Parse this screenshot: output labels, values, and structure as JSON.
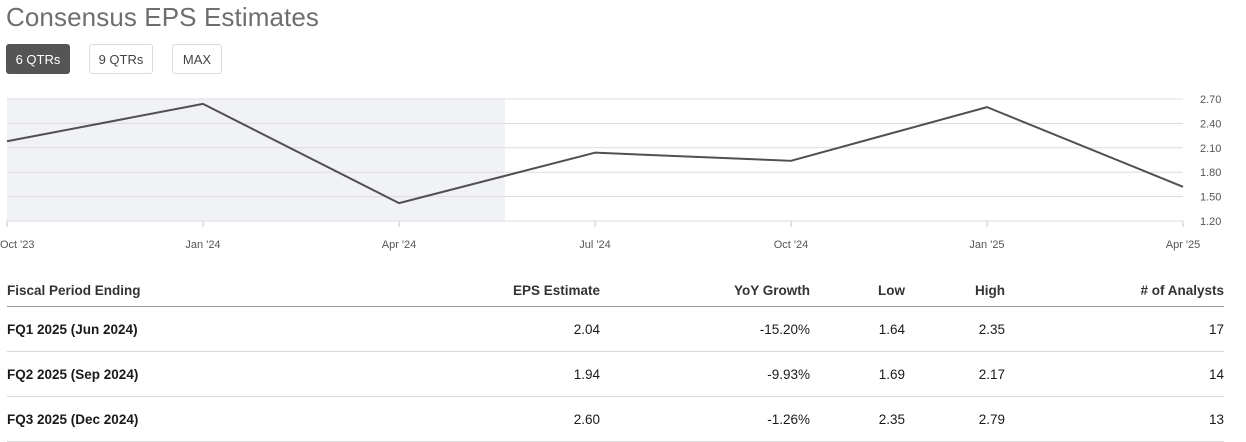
{
  "title": "Consensus EPS Estimates",
  "tabs": [
    {
      "label": "6 QTRs",
      "active": true
    },
    {
      "label": "9 QTRs",
      "active": false
    },
    {
      "label": "MAX",
      "active": false
    }
  ],
  "colors": {
    "line": "#505050",
    "grid": "#dcdcdc",
    "history_shade": "#f1f2f6",
    "active_tab": "#555555"
  },
  "chart_data": {
    "type": "line",
    "x": [
      "Oct '23",
      "Jan '24",
      "Apr '24",
      "Jul '24",
      "Oct '24",
      "Jan '25",
      "Apr '25"
    ],
    "series": [
      {
        "values": [
          2.18,
          2.64,
          1.42,
          2.04,
          1.94,
          2.6,
          1.62
        ]
      }
    ],
    "ylim": [
      1.2,
      2.7
    ],
    "yticks": [
      "2.70",
      "2.40",
      "2.10",
      "1.80",
      "1.50",
      "1.20"
    ],
    "y_axis_side": "right",
    "grid": true,
    "shaded_x_range": [
      "Oct '23",
      "mid-May '24"
    ]
  },
  "table": {
    "headers": {
      "period": "Fiscal Period Ending",
      "eps": "EPS Estimate",
      "yoy": "YoY Growth",
      "low": "Low",
      "high": "High",
      "analysts": "# of Analysts"
    },
    "rows": [
      {
        "period": "FQ1 2025 (Jun 2024)",
        "eps": "2.04",
        "yoy": "-15.20%",
        "low": "1.64",
        "high": "2.35",
        "analysts": "17"
      },
      {
        "period": "FQ2 2025 (Sep 2024)",
        "eps": "1.94",
        "yoy": "-9.93%",
        "low": "1.69",
        "high": "2.17",
        "analysts": "14"
      },
      {
        "period": "FQ3 2025 (Dec 2024)",
        "eps": "2.60",
        "yoy": "-1.26%",
        "low": "2.35",
        "high": "2.79",
        "analysts": "13"
      }
    ]
  }
}
